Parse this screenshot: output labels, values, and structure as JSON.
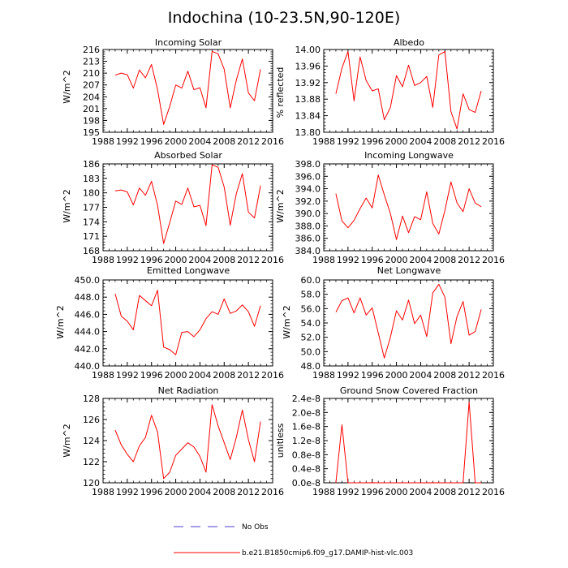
{
  "title": "Indochina (10-23.5N,90-120E)",
  "colors": {
    "model": "#ff0000",
    "obs": "#4b3fd6",
    "axis": "#000000"
  },
  "legend": {
    "items": [
      {
        "label": "No Obs",
        "style": "dashed",
        "color": "#4b3fd6"
      },
      {
        "label": "b.e21.B1850cmip6.f09_g17.DAMIP-hist-vlc.003",
        "style": "solid",
        "color": "#ff0000"
      }
    ]
  },
  "chart_data": [
    {
      "type": "line",
      "title": "Incoming Solar",
      "ylabel": "W/m^2",
      "xlim": [
        1988,
        2016
      ],
      "ylim": [
        195,
        216
      ],
      "xticks": [
        1988,
        1992,
        1996,
        2000,
        2004,
        2008,
        2012,
        2016
      ],
      "xtick_labels": [
        "1988",
        "1992",
        "1996",
        "2000",
        "2004",
        "2008",
        "2012",
        "2016"
      ],
      "yticks": [
        195,
        198,
        201,
        204,
        207,
        210,
        213,
        216
      ],
      "ytick_labels": [
        "195",
        "198",
        "201",
        "204",
        "207",
        "210",
        "213",
        "216"
      ],
      "series": [
        {
          "name": "b.e21.B1850cmip6.f09_g17.DAMIP-hist-vlc.003",
          "x": [
            1990,
            1991,
            1992,
            1993,
            1994,
            1995,
            1996,
            1997,
            1998,
            1999,
            2000,
            2001,
            2002,
            2003,
            2004,
            2005,
            2006,
            2007,
            2008,
            2009,
            2010,
            2011,
            2012,
            2013,
            2014
          ],
          "y": [
            209.5,
            210.0,
            209.6,
            206.2,
            210.8,
            208.8,
            212.2,
            205.8,
            197.0,
            201.5,
            207.0,
            206.2,
            210.5,
            205.8,
            206.3,
            201.2,
            215.5,
            214.9,
            211.0,
            201.2,
            208.2,
            213.6,
            205.0,
            203.0,
            211.0
          ]
        }
      ]
    },
    {
      "type": "line",
      "title": "Albedo",
      "ylabel": "% reflected",
      "xlim": [
        1988,
        2016
      ],
      "ylim": [
        13.8,
        14.0
      ],
      "xticks": [
        1988,
        1992,
        1996,
        2000,
        2004,
        2008,
        2012,
        2016
      ],
      "xtick_labels": [
        "1988",
        "1992",
        "1996",
        "2000",
        "2004",
        "2008",
        "2012",
        "2016"
      ],
      "yticks": [
        13.8,
        13.84,
        13.88,
        13.92,
        13.96,
        14.0
      ],
      "ytick_labels": [
        "13.80",
        "13.84",
        "13.88",
        "13.92",
        "13.96",
        "14.00"
      ],
      "series": [
        {
          "name": "b.e21.B1850cmip6.f09_g17.DAMIP-hist-vlc.003",
          "x": [
            1990,
            1991,
            1992,
            1993,
            1994,
            1995,
            1996,
            1997,
            1998,
            1999,
            2000,
            2001,
            2002,
            2003,
            2004,
            2005,
            2006,
            2007,
            2008,
            2009,
            2010,
            2011,
            2012,
            2013,
            2014
          ],
          "y": [
            13.893,
            13.955,
            13.995,
            13.876,
            13.982,
            13.925,
            13.9,
            13.905,
            13.83,
            13.86,
            13.937,
            13.91,
            13.962,
            13.913,
            13.92,
            13.935,
            13.86,
            13.987,
            13.995,
            13.85,
            13.808,
            13.893,
            13.855,
            13.848,
            13.9
          ]
        }
      ]
    },
    {
      "type": "line",
      "title": "Absorbed Solar",
      "ylabel": "W/m^2",
      "xlim": [
        1988,
        2016
      ],
      "ylim": [
        168,
        186
      ],
      "xticks": [
        1988,
        1992,
        1996,
        2000,
        2004,
        2008,
        2012,
        2016
      ],
      "xtick_labels": [
        "1988",
        "1992",
        "1996",
        "2000",
        "2004",
        "2008",
        "2012",
        "2016"
      ],
      "yticks": [
        168,
        171,
        174,
        177,
        180,
        183,
        186
      ],
      "ytick_labels": [
        "168",
        "171",
        "174",
        "177",
        "180",
        "183",
        "186"
      ],
      "series": [
        {
          "name": "b.e21.B1850cmip6.f09_g17.DAMIP-hist-vlc.003",
          "x": [
            1990,
            1991,
            1992,
            1993,
            1994,
            1995,
            1996,
            1997,
            1998,
            1999,
            2000,
            2001,
            2002,
            2003,
            2004,
            2005,
            2006,
            2007,
            2008,
            2009,
            2010,
            2011,
            2012,
            2013,
            2014
          ],
          "y": [
            180.4,
            180.6,
            180.2,
            177.5,
            181.0,
            179.5,
            182.4,
            177.4,
            169.5,
            173.8,
            178.3,
            177.6,
            181.0,
            177.1,
            177.4,
            173.2,
            185.8,
            185.3,
            181.2,
            173.3,
            179.8,
            184.0,
            176.0,
            174.8,
            181.5
          ]
        }
      ]
    },
    {
      "type": "line",
      "title": "Incoming Longwave",
      "ylabel": "W/m^2",
      "xlim": [
        1988,
        2016
      ],
      "ylim": [
        384,
        398
      ],
      "xticks": [
        1988,
        1992,
        1996,
        2000,
        2004,
        2008,
        2012,
        2016
      ],
      "xtick_labels": [
        "1988",
        "1992",
        "1996",
        "2000",
        "2004",
        "2008",
        "2012",
        "2016"
      ],
      "yticks": [
        384,
        386,
        388,
        390,
        392,
        394,
        396,
        398
      ],
      "ytick_labels": [
        "384.0",
        "386.0",
        "388.0",
        "390.0",
        "392.0",
        "394.0",
        "396.0",
        "398.0"
      ],
      "series": [
        {
          "name": "b.e21.B1850cmip6.f09_g17.DAMIP-hist-vlc.003",
          "x": [
            1990,
            1991,
            1992,
            1993,
            1994,
            1995,
            1996,
            1997,
            1998,
            1999,
            2000,
            2001,
            2002,
            2003,
            2004,
            2005,
            2006,
            2007,
            2008,
            2009,
            2010,
            2011,
            2012,
            2013,
            2014
          ],
          "y": [
            393.2,
            388.8,
            387.7,
            388.9,
            390.8,
            392.5,
            390.9,
            396.2,
            393.0,
            390.0,
            385.8,
            389.6,
            386.9,
            389.5,
            389.0,
            393.5,
            388.4,
            386.7,
            390.5,
            395.1,
            391.7,
            390.3,
            394.0,
            391.7,
            391.1
          ]
        }
      ]
    },
    {
      "type": "line",
      "title": "Emitted Longwave",
      "ylabel": "W/m^2",
      "xlim": [
        1988,
        2016
      ],
      "ylim": [
        440,
        450
      ],
      "xticks": [
        1988,
        1992,
        1996,
        2000,
        2004,
        2008,
        2012,
        2016
      ],
      "xtick_labels": [
        "1988",
        "1992",
        "1996",
        "2000",
        "2004",
        "2008",
        "2012",
        "2016"
      ],
      "yticks": [
        440,
        442,
        444,
        446,
        448,
        450
      ],
      "ytick_labels": [
        "440.0",
        "442.0",
        "444.0",
        "446.0",
        "448.0",
        "450.0"
      ],
      "series": [
        {
          "name": "b.e21.B1850cmip6.f09_g17.DAMIP-hist-vlc.003",
          "x": [
            1990,
            1991,
            1992,
            1993,
            1994,
            1995,
            1996,
            1997,
            1998,
            1999,
            2000,
            2001,
            2002,
            2003,
            2004,
            2005,
            2006,
            2007,
            2008,
            2009,
            2010,
            2011,
            2012,
            2013,
            2014
          ],
          "y": [
            448.4,
            445.8,
            445.2,
            444.2,
            448.2,
            447.6,
            447.0,
            448.8,
            442.2,
            441.9,
            441.3,
            443.9,
            444.0,
            443.4,
            444.2,
            445.5,
            446.3,
            446.0,
            447.8,
            446.1,
            446.4,
            447.1,
            446.3,
            444.6,
            447.0
          ]
        }
      ]
    },
    {
      "type": "line",
      "title": "Net Longwave",
      "ylabel": "W/m^2",
      "xlim": [
        1988,
        2016
      ],
      "ylim": [
        48,
        60
      ],
      "xticks": [
        1988,
        1992,
        1996,
        2000,
        2004,
        2008,
        2012,
        2016
      ],
      "xtick_labels": [
        "1988",
        "1992",
        "1996",
        "2000",
        "2004",
        "2008",
        "2012",
        "2016"
      ],
      "yticks": [
        48,
        50,
        52,
        54,
        56,
        58,
        60
      ],
      "ytick_labels": [
        "48.0",
        "50.0",
        "52.0",
        "54.0",
        "56.0",
        "58.0",
        "60.0"
      ],
      "series": [
        {
          "name": "b.e21.B1850cmip6.f09_g17.DAMIP-hist-vlc.003",
          "x": [
            1990,
            1991,
            1992,
            1993,
            1994,
            1995,
            1996,
            1997,
            1998,
            1999,
            2000,
            2001,
            2002,
            2003,
            2004,
            2005,
            2006,
            2007,
            2008,
            2009,
            2010,
            2011,
            2012,
            2013,
            2014
          ],
          "y": [
            55.5,
            57.1,
            57.5,
            55.4,
            57.5,
            55.1,
            56.1,
            52.6,
            49.1,
            52.0,
            55.7,
            54.4,
            57.2,
            53.9,
            55.1,
            52.1,
            58.2,
            59.4,
            57.6,
            51.1,
            54.9,
            57.0,
            52.3,
            52.8,
            55.9
          ]
        }
      ]
    },
    {
      "type": "line",
      "title": "Net Radiation",
      "ylabel": "W/m^2",
      "xlim": [
        1988,
        2016
      ],
      "ylim": [
        120,
        128
      ],
      "xticks": [
        1988,
        1992,
        1996,
        2000,
        2004,
        2008,
        2012,
        2016
      ],
      "xtick_labels": [
        "1988",
        "1992",
        "1996",
        "2000",
        "2004",
        "2008",
        "2012",
        "2016"
      ],
      "yticks": [
        120,
        122,
        124,
        126,
        128
      ],
      "ytick_labels": [
        "120",
        "122",
        "124",
        "126",
        "128"
      ],
      "series": [
        {
          "name": "b.e21.B1850cmip6.f09_g17.DAMIP-hist-vlc.003",
          "x": [
            1990,
            1991,
            1992,
            1993,
            1994,
            1995,
            1996,
            1997,
            1998,
            1999,
            2000,
            2001,
            2002,
            2003,
            2004,
            2005,
            2006,
            2007,
            2008,
            2009,
            2010,
            2011,
            2012,
            2013,
            2014
          ],
          "y": [
            125.0,
            123.6,
            122.7,
            122.0,
            123.5,
            124.3,
            126.4,
            124.8,
            120.4,
            121.0,
            122.6,
            123.2,
            123.8,
            123.4,
            122.5,
            121.0,
            127.4,
            125.4,
            123.8,
            122.2,
            124.3,
            126.9,
            124.1,
            122.0,
            125.8
          ]
        }
      ]
    },
    {
      "type": "line",
      "title": "Ground Snow Covered Fraction",
      "ylabel": "unitless",
      "xlim": [
        1988,
        2016
      ],
      "ylim": [
        0,
        2.4e-08
      ],
      "xticks": [
        1988,
        1992,
        1996,
        2000,
        2004,
        2008,
        2012,
        2016
      ],
      "xtick_labels": [
        "1988",
        "1992",
        "1996",
        "2000",
        "2004",
        "2008",
        "2012",
        "2016"
      ],
      "yticks": [
        0,
        4e-09,
        8e-09,
        1.2e-08,
        1.6e-08,
        2e-08,
        2.4e-08
      ],
      "ytick_labels": [
        "0.0e-8",
        "0.4e-8",
        "0.8e-8",
        "1.2e-8",
        "1.6e-8",
        "2.0e-8",
        "2.4e-8"
      ],
      "series": [
        {
          "name": "b.e21.B1850cmip6.f09_g17.DAMIP-hist-vlc.003",
          "x": [
            1990,
            1991,
            1992,
            1993,
            1994,
            1995,
            1996,
            1997,
            1998,
            1999,
            2000,
            2001,
            2002,
            2003,
            2004,
            2005,
            2006,
            2007,
            2008,
            2009,
            2010,
            2011,
            2012,
            2013,
            2014
          ],
          "y": [
            0,
            1.65e-08,
            0,
            0,
            0,
            0,
            3e-11,
            0,
            0,
            0,
            0,
            0,
            0,
            0,
            0,
            0,
            2e-11,
            0,
            0,
            0,
            0,
            0,
            2.3e-08,
            0,
            0
          ]
        }
      ]
    }
  ]
}
